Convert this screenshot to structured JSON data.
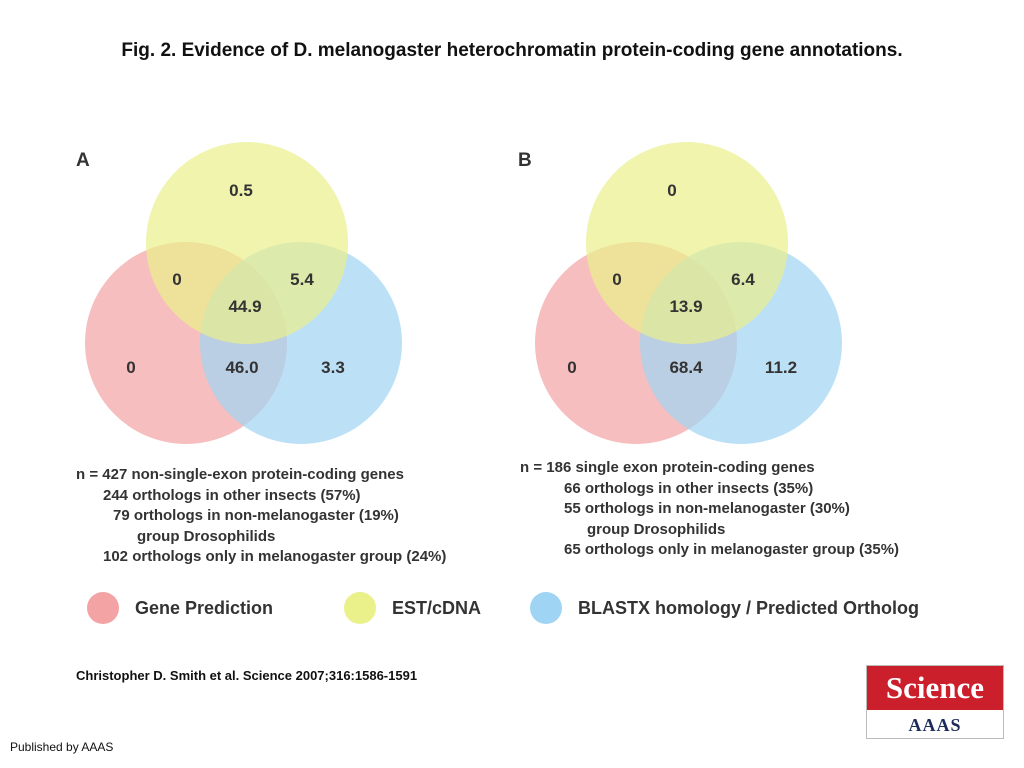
{
  "title": "Fig. 2. Evidence of D. melanogaster heterochromatin protein-coding gene annotations.",
  "colors": {
    "gene_prediction": "#f4a3a4",
    "est_cdna": "#eaf08a",
    "blastx": "#9fd4f4"
  },
  "panels": {
    "a": {
      "letter": "A",
      "values": {
        "est_only": "0.5",
        "gene_est": "0",
        "est_blastx": "5.4",
        "all_three": "44.9",
        "gene_only": "0",
        "gene_blastx": "46.0",
        "blastx_only": "3.3"
      },
      "notes": [
        "n = 427 non-single-exon protein-coding genes",
        "244 orthologs in other insects (57%)",
        "79 orthologs in non-melanogaster (19%)",
        "group Drosophilids",
        "102 orthologs only in melanogaster group (24%)"
      ]
    },
    "b": {
      "letter": "B",
      "values": {
        "est_only": "0",
        "gene_est": "0",
        "est_blastx": "6.4",
        "all_three": "13.9",
        "gene_only": "0",
        "gene_blastx": "68.4",
        "blastx_only": "11.2"
      },
      "notes": [
        "n =  186 single exon protein-coding genes",
        "66 orthologs in other insects (35%)",
        "55 orthologs in non-melanogaster (30%)",
        "group Drosophilids",
        "65 orthologs only in melanogaster group (35%)"
      ]
    }
  },
  "legend": {
    "gene_prediction": "Gene Prediction",
    "est_cdna": "EST/cDNA",
    "blastx": "BLASTX homology / Predicted Ortholog"
  },
  "citation": "Christopher D. Smith et al. Science 2007;316:1586-1591",
  "publisher": "Published by AAAS",
  "logo": {
    "top": "Science",
    "bottom": "AAAS"
  }
}
